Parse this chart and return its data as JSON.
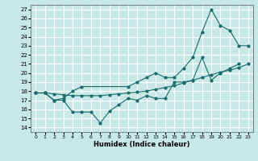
{
  "xlabel": "Humidex (Indice chaleur)",
  "xlim": [
    -0.5,
    23.5
  ],
  "ylim": [
    13.5,
    27.5
  ],
  "xticks": [
    0,
    1,
    2,
    3,
    4,
    5,
    6,
    7,
    8,
    9,
    10,
    11,
    12,
    13,
    14,
    15,
    16,
    17,
    18,
    19,
    20,
    21,
    22,
    23
  ],
  "yticks": [
    14,
    15,
    16,
    17,
    18,
    19,
    20,
    21,
    22,
    23,
    24,
    25,
    26,
    27
  ],
  "bg_color": "#c8e8e8",
  "grid_color": "#ffffff",
  "line_color": "#1a6b6b",
  "line_zigzag_x": [
    0,
    1,
    2,
    3,
    4,
    5,
    6,
    7,
    8,
    9,
    10,
    11,
    12,
    13,
    14,
    15,
    16,
    17,
    18,
    19,
    20,
    21,
    22
  ],
  "line_zigzag_y": [
    17.8,
    17.8,
    17.0,
    17.0,
    15.7,
    15.7,
    15.7,
    14.5,
    15.8,
    16.5,
    17.2,
    17.0,
    17.5,
    17.2,
    17.2,
    19.0,
    19.0,
    19.2,
    21.7,
    19.2,
    20.0,
    20.5,
    21.0
  ],
  "line_steep_x": [
    0,
    1,
    2,
    3,
    4,
    5,
    10,
    11,
    12,
    13,
    14,
    15,
    16,
    17,
    18,
    19,
    20,
    21,
    22,
    23
  ],
  "line_steep_y": [
    17.8,
    17.8,
    17.0,
    17.2,
    18.0,
    18.5,
    18.5,
    19.0,
    19.5,
    20.0,
    19.5,
    19.5,
    20.5,
    21.7,
    24.5,
    27.0,
    25.2,
    24.7,
    23.0,
    23.0
  ],
  "line_flat_x": [
    0,
    1,
    2,
    3,
    4,
    5,
    6,
    7,
    8,
    9,
    10,
    11,
    12,
    13,
    14,
    15,
    16,
    17,
    18,
    19,
    20,
    21,
    22,
    23
  ],
  "line_flat_y": [
    17.8,
    17.8,
    17.7,
    17.6,
    17.5,
    17.5,
    17.5,
    17.5,
    17.6,
    17.7,
    17.8,
    17.9,
    18.0,
    18.2,
    18.4,
    18.6,
    18.9,
    19.2,
    19.5,
    19.8,
    20.1,
    20.3,
    20.6,
    21.0
  ]
}
